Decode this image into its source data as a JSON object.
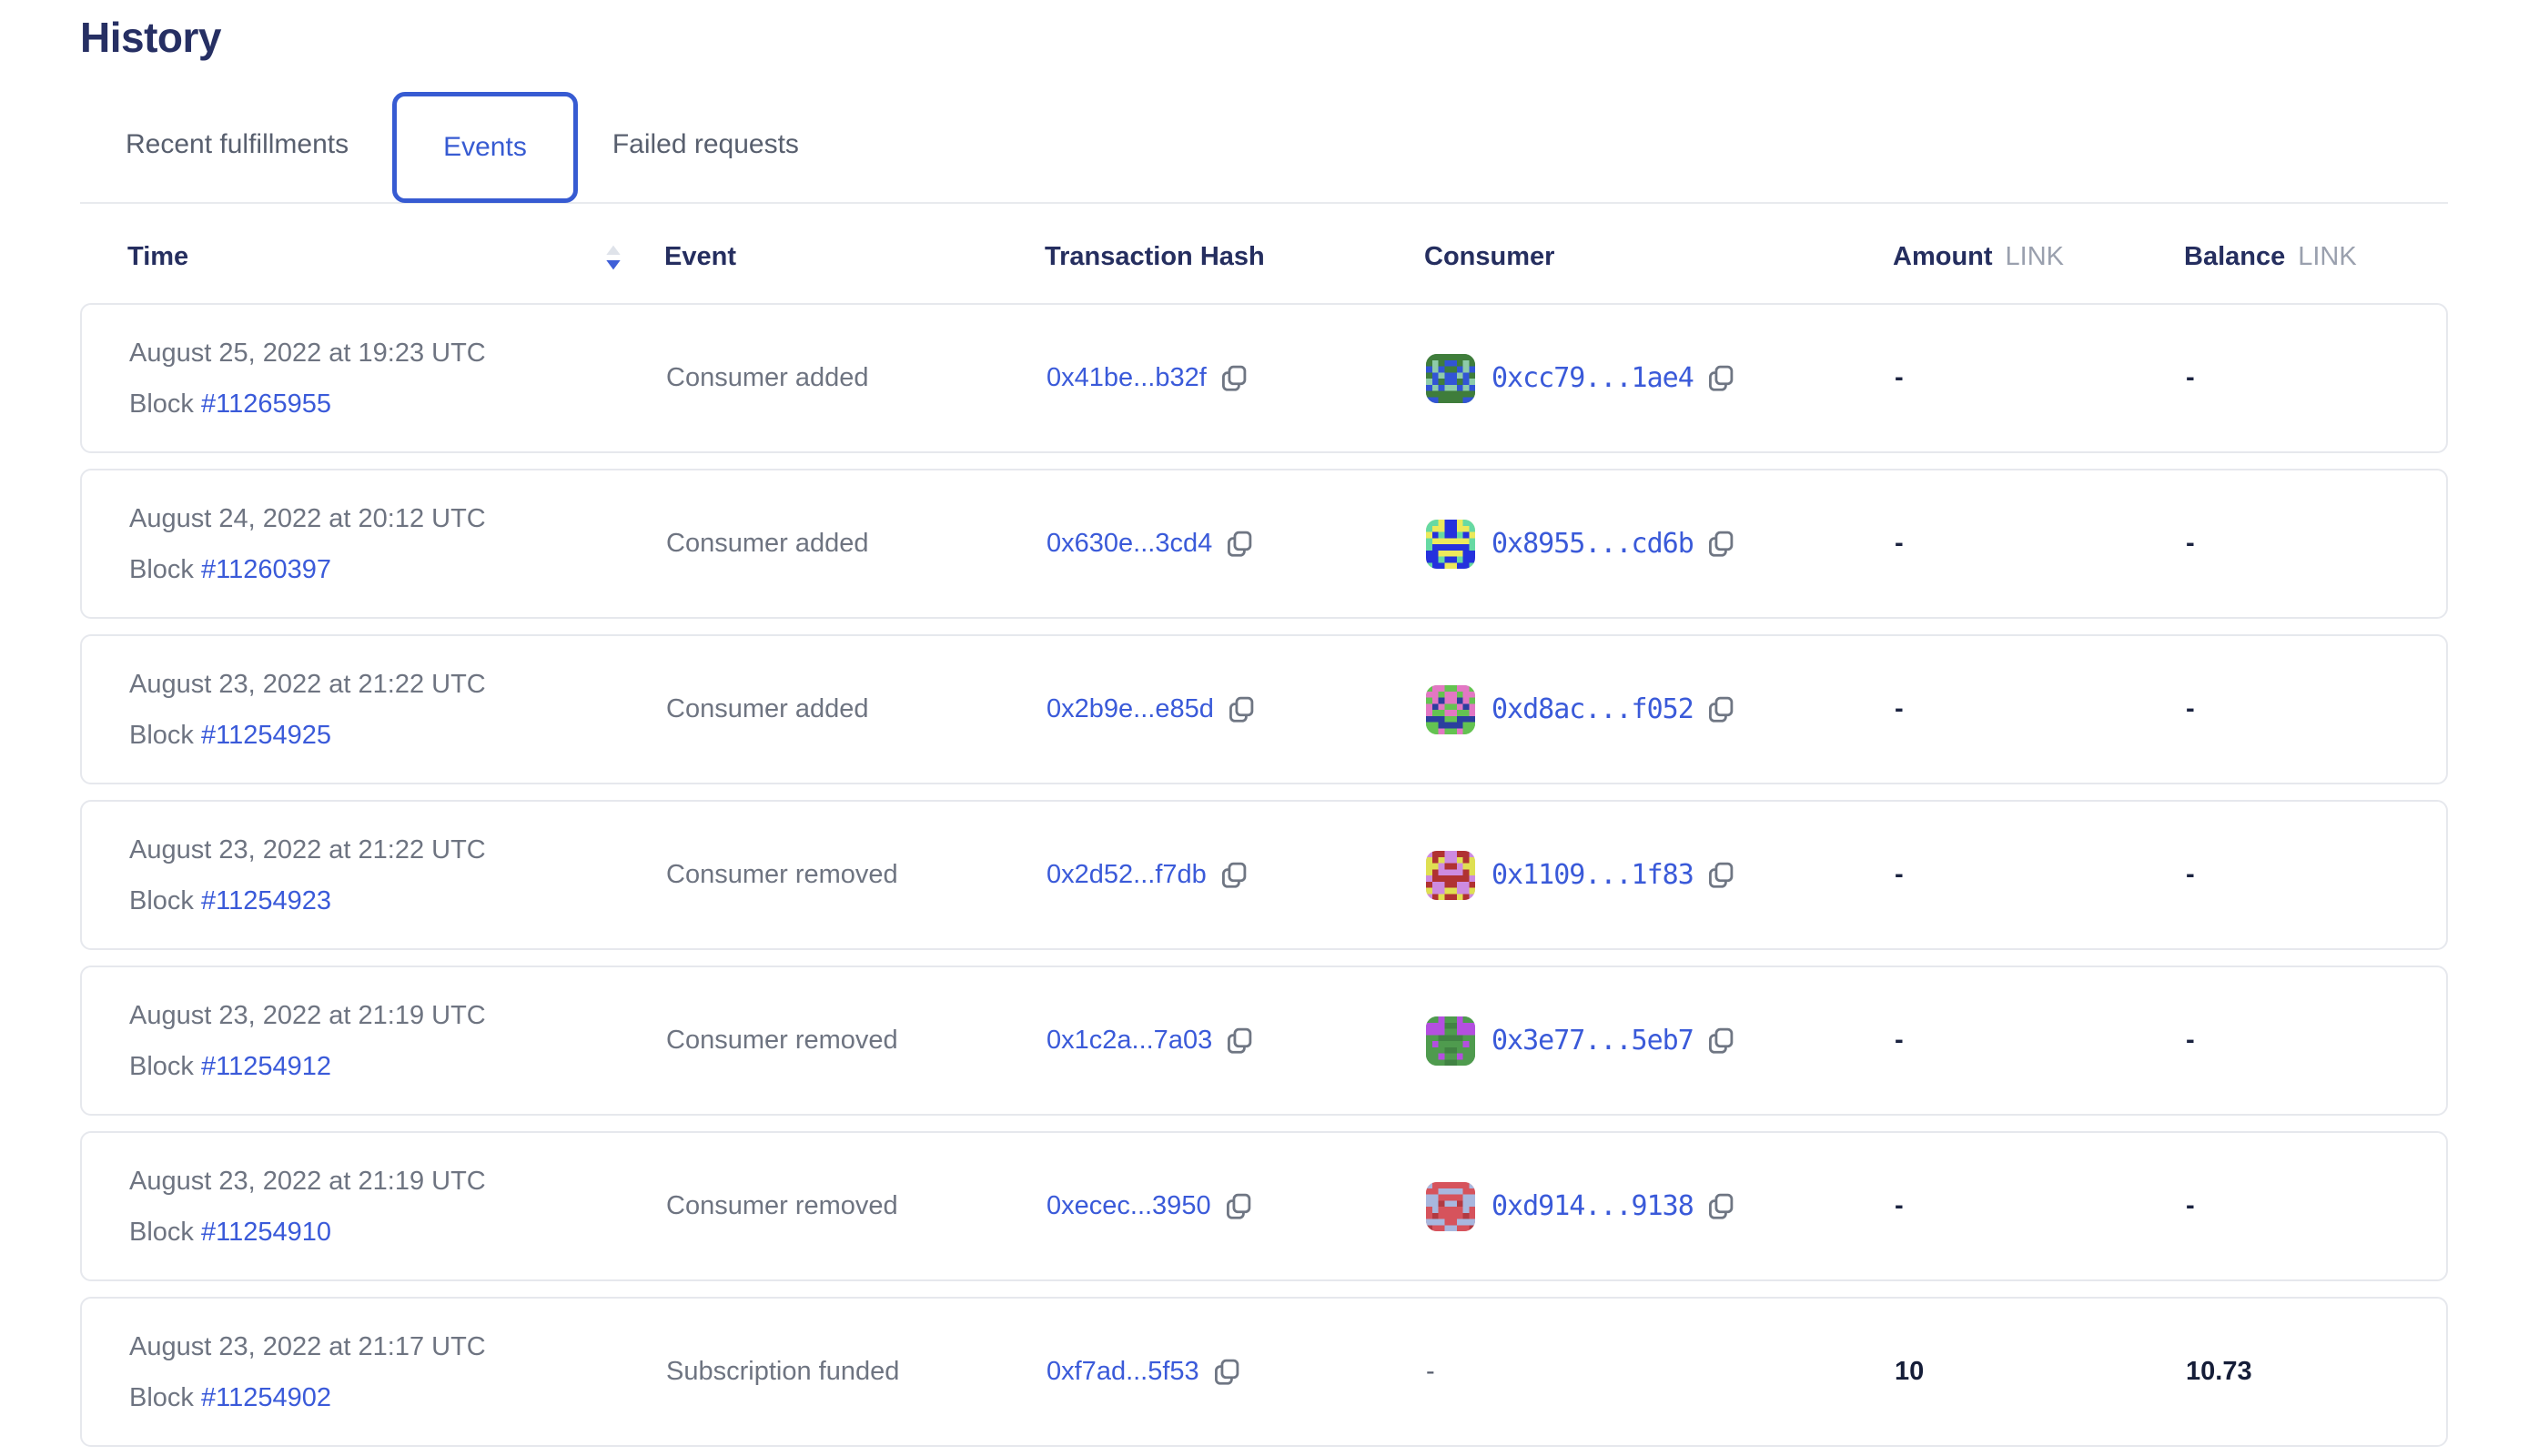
{
  "page": {
    "title": "History"
  },
  "tabs": [
    {
      "label": "Recent fulfillments",
      "active": false
    },
    {
      "label": "Events",
      "active": true
    },
    {
      "label": "Failed requests",
      "active": false
    }
  ],
  "colors": {
    "accent_blue": "#375bd2",
    "heading_navy": "#252e5f",
    "body_gray": "#6e7481",
    "unit_gray": "#9aa0ae",
    "border_gray": "#e6e8ed",
    "copy_icon_gray": "#6f7683",
    "sort_up_gray": "#dfe3ea",
    "sort_down_blue": "#3f5fd8"
  },
  "table": {
    "headers": {
      "time": "Time",
      "event": "Event",
      "tx_hash": "Transaction Hash",
      "consumer": "Consumer",
      "amount": "Amount",
      "balance": "Balance",
      "unit": "LINK"
    },
    "sort": {
      "column": "time",
      "direction": "desc"
    },
    "rows": [
      {
        "date": "August 25, 2022 at 19:23 UTC",
        "block_label": "Block",
        "block": "#11265955",
        "event": "Consumer added",
        "tx_hash": "0x41be...b32f",
        "consumer": "0xcc79...1ae4",
        "avatar": {
          "bg": "#3f7d3b",
          "fg": "#3254d6",
          "spot": "#8ecbaa"
        },
        "amount": "-",
        "balance": "-"
      },
      {
        "date": "August 24, 2022 at 20:12 UTC",
        "block_label": "Block",
        "block": "#11260397",
        "event": "Consumer added",
        "tx_hash": "0x630e...3cd4",
        "consumer": "0x8955...cd6b",
        "avatar": {
          "bg": "#ece95b",
          "fg": "#2531dd",
          "spot": "#66d9a3"
        },
        "amount": "-",
        "balance": "-"
      },
      {
        "date": "August 23, 2022 at 21:22 UTC",
        "block_label": "Block",
        "block": "#11254925",
        "event": "Consumer added",
        "tx_hash": "0x2b9e...e85d",
        "consumer": "0xd8ac...f052",
        "avatar": {
          "bg": "#64c351",
          "fg": "#e377c4",
          "spot": "#2b3f9e"
        },
        "amount": "-",
        "balance": "-"
      },
      {
        "date": "August 23, 2022 at 21:22 UTC",
        "block_label": "Block",
        "block": "#11254923",
        "event": "Consumer removed",
        "tx_hash": "0x2d52...f7db",
        "consumer": "0x1109...1f83",
        "avatar": {
          "bg": "#cd8be0",
          "fg": "#dfe052",
          "spot": "#b03232"
        },
        "amount": "-",
        "balance": "-"
      },
      {
        "date": "August 23, 2022 at 21:19 UTC",
        "block_label": "Block",
        "block": "#11254912",
        "event": "Consumer removed",
        "tx_hash": "0x1c2a...7a03",
        "consumer": "0x3e77...5eb7",
        "avatar": {
          "bg": "#4f9b4e",
          "fg": "#b44fe0",
          "spot": "#418343"
        },
        "amount": "-",
        "balance": "-"
      },
      {
        "date": "August 23, 2022 at 21:19 UTC",
        "block_label": "Block",
        "block": "#11254910",
        "event": "Consumer removed",
        "tx_hash": "0xecec...3950",
        "consumer": "0xd914...9138",
        "avatar": {
          "bg": "#d6535c",
          "fg": "#a8b7de",
          "spot": "#b13a42"
        },
        "amount": "-",
        "balance": "-"
      },
      {
        "date": "August 23, 2022 at 21:17 UTC",
        "block_label": "Block",
        "block": "#11254902",
        "event": "Subscription funded",
        "tx_hash": "0xf7ad...5f53",
        "consumer": "-",
        "avatar": null,
        "amount": "10",
        "balance": "10.73"
      }
    ]
  }
}
